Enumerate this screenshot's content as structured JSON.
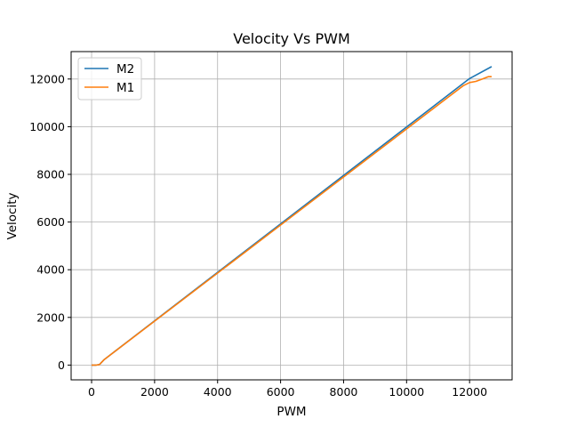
{
  "chart_data": {
    "type": "line",
    "title": "Velocity Vs PWM",
    "xlabel": "PWM",
    "ylabel": "Velocity",
    "xlim": [
      -650,
      13350
    ],
    "ylim": [
      -620,
      13150
    ],
    "xticks": [
      0,
      2000,
      4000,
      6000,
      8000,
      10000,
      12000
    ],
    "yticks": [
      0,
      2000,
      4000,
      6000,
      8000,
      10000,
      12000
    ],
    "grid": true,
    "legend_position": "top-left",
    "series": [
      {
        "name": "M2",
        "color": "#1f77b4",
        "points": [
          [
            0,
            0
          ],
          [
            150,
            0
          ],
          [
            250,
            20
          ],
          [
            400,
            230
          ],
          [
            12000,
            12020
          ],
          [
            12700,
            12520
          ]
        ]
      },
      {
        "name": "M1",
        "color": "#ff7f0e",
        "points": [
          [
            0,
            0
          ],
          [
            150,
            0
          ],
          [
            250,
            20
          ],
          [
            400,
            230
          ],
          [
            11800,
            11720
          ],
          [
            12000,
            11850
          ],
          [
            12200,
            11900
          ],
          [
            12400,
            12000
          ],
          [
            12600,
            12100
          ],
          [
            12700,
            12100
          ]
        ]
      }
    ]
  }
}
